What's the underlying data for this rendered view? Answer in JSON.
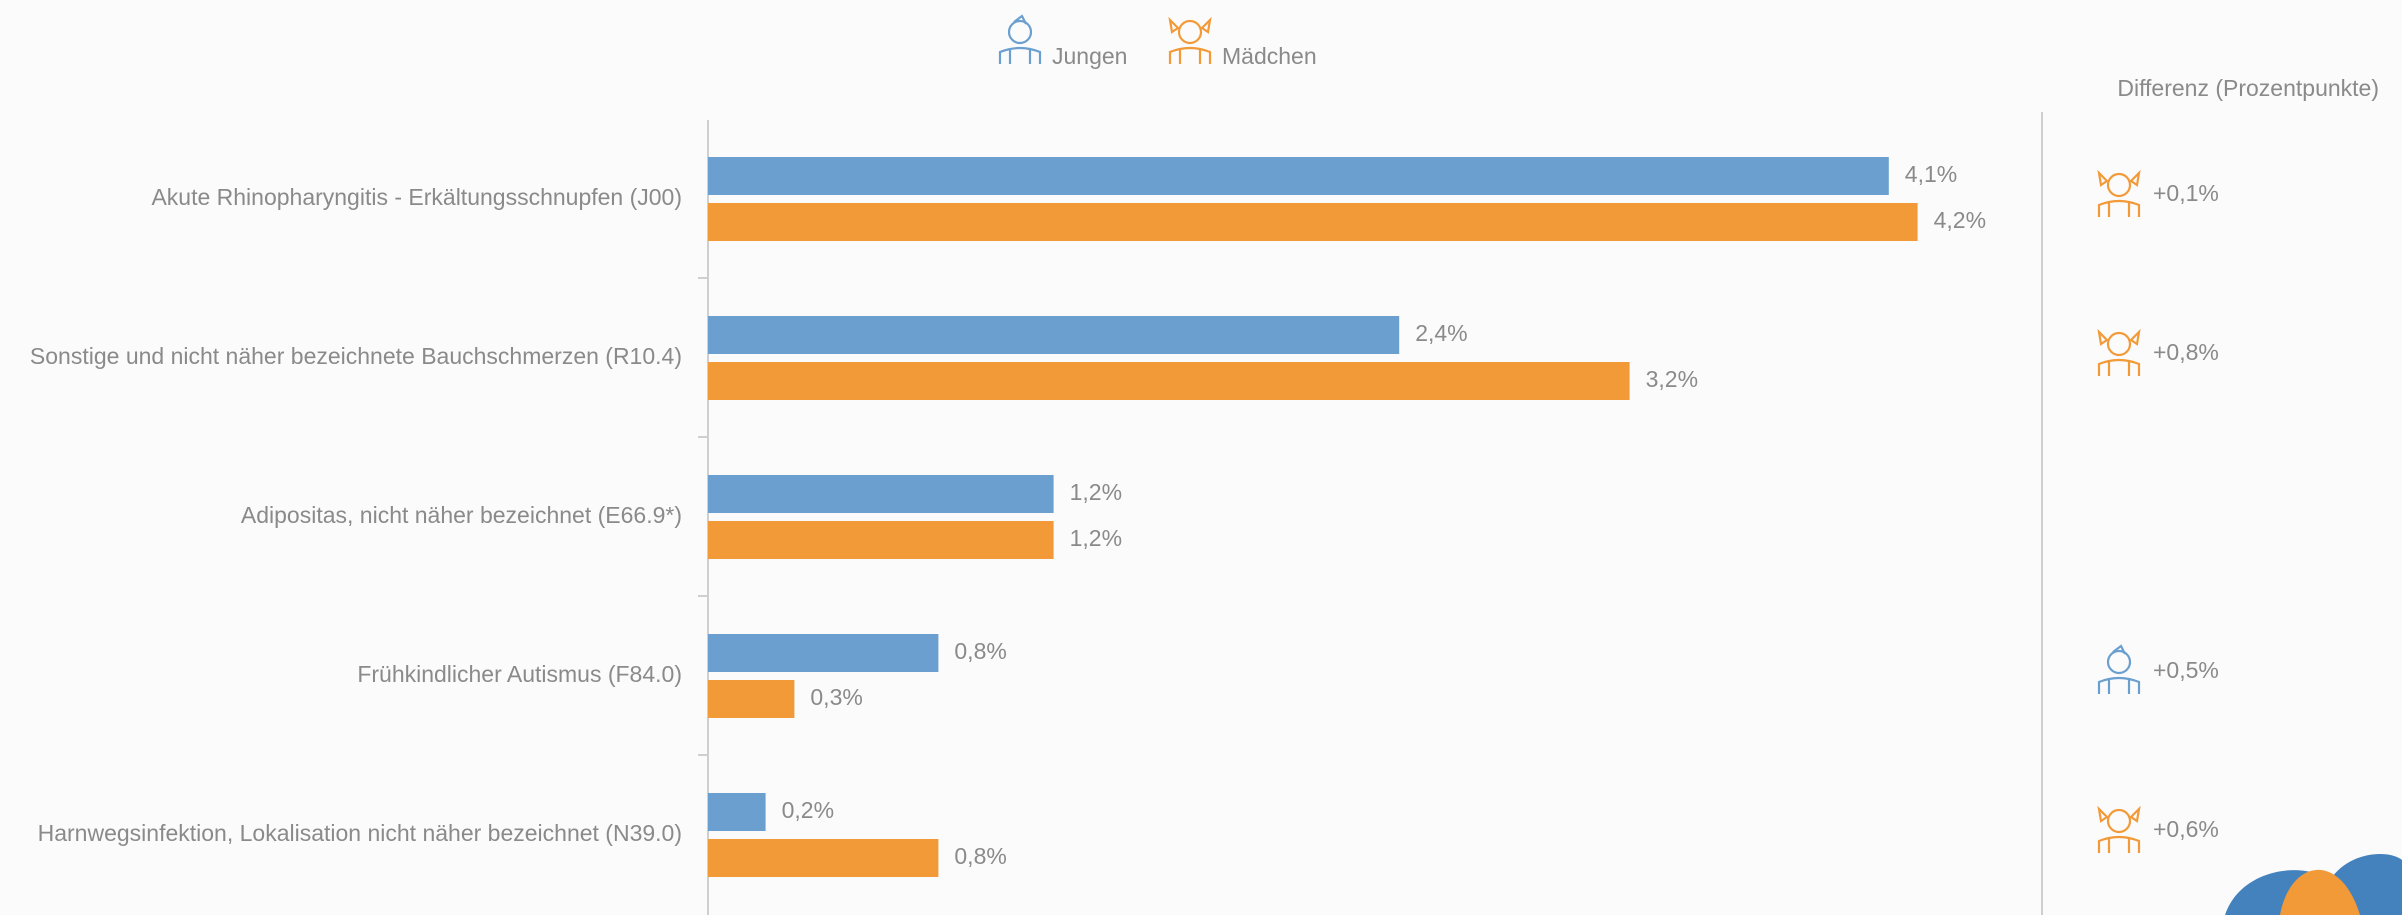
{
  "chart_data": {
    "type": "bar",
    "orientation": "horizontal",
    "categories": [
      "Akute Rhinopharyngitis - Erkältungsschnupfen (J00)",
      "Sonstige und nicht näher bezeichnete Bauchschmerzen (R10.4)",
      "Adipositas, nicht näher bezeichnet (E66.9*)",
      "Frühkindlicher Autismus (F84.0)",
      "Harnwegsinfektion, Lokalisation nicht näher bezeichnet (N39.0)"
    ],
    "series": [
      {
        "name": "Jungen",
        "color": "#6a9fcf",
        "values": [
          4.1,
          2.4,
          1.2,
          0.8,
          0.2
        ],
        "value_labels": [
          "4,1%",
          "2,4%",
          "1,2%",
          "0,8%",
          "0,2%"
        ]
      },
      {
        "name": "Mädchen",
        "color": "#f29a38",
        "values": [
          4.2,
          3.2,
          1.2,
          0.3,
          0.8
        ],
        "value_labels": [
          "4,2%",
          "3,2%",
          "1,2%",
          "0,3%",
          "0,8%"
        ]
      }
    ],
    "xlim": [
      0,
      4.5
    ],
    "difference_title": "Differenz (Prozentpunkte)",
    "differences": [
      {
        "label": "+0,1%",
        "leader": "Mädchen"
      },
      {
        "label": "+0,8%",
        "leader": "Mädchen"
      },
      null,
      {
        "label": "+0,5%",
        "leader": "Jungen"
      },
      {
        "label": "+0,6%",
        "leader": "Mädchen"
      }
    ]
  }
}
